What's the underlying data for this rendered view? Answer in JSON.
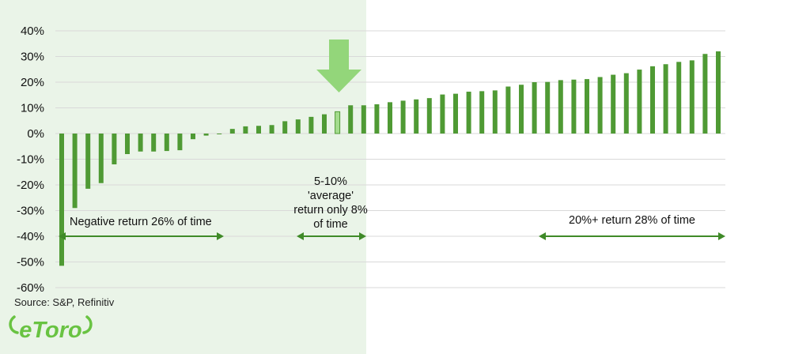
{
  "chart_data": {
    "type": "bar",
    "ylim": [
      -60,
      40
    ],
    "yticks": [
      40,
      30,
      20,
      10,
      0,
      -10,
      -20,
      -30,
      -40,
      -50,
      -60
    ],
    "ytick_labels": [
      "40%",
      "30%",
      "20%",
      "10%",
      "0%",
      "-10%",
      "-20%",
      "-30%",
      "-40%",
      "-50%",
      "-60%"
    ],
    "grid": true,
    "values": [
      -51.5,
      -29,
      -21.5,
      -19.3,
      -12,
      -8,
      -7,
      -7,
      -6.8,
      -6.5,
      -2.2,
      -0.8,
      -0.3,
      1.8,
      2.8,
      3,
      3.3,
      4.8,
      5.5,
      6.5,
      7.5,
      8.5,
      11,
      11,
      11.4,
      12.2,
      12.8,
      13.3,
      13.8,
      15.2,
      15.5,
      16.3,
      16.5,
      16.8,
      18.3,
      19,
      20,
      20.1,
      20.8,
      21,
      21.2,
      22,
      22.9,
      23.5,
      24.9,
      26.2,
      27,
      27.9,
      28.5,
      31,
      32
    ],
    "highlight_index": 21,
    "colors": {
      "bar": "#4f9a34",
      "highlight_fill": "#a4dc8e",
      "shade": "#eaf4e8",
      "arrow": "#93d67a",
      "annotation": "#3f8a28",
      "grid": "#d9d9d9"
    },
    "annotations": {
      "negative": "Negative return 26% of time",
      "average_lines": [
        "5-10%",
        "'average'",
        "return only 8%",
        "of time"
      ],
      "high": "20%+ return 28% of time"
    }
  },
  "source": "Source: S&P, Refinitiv",
  "logo": {
    "text": "eToro",
    "color": "#69c342"
  }
}
